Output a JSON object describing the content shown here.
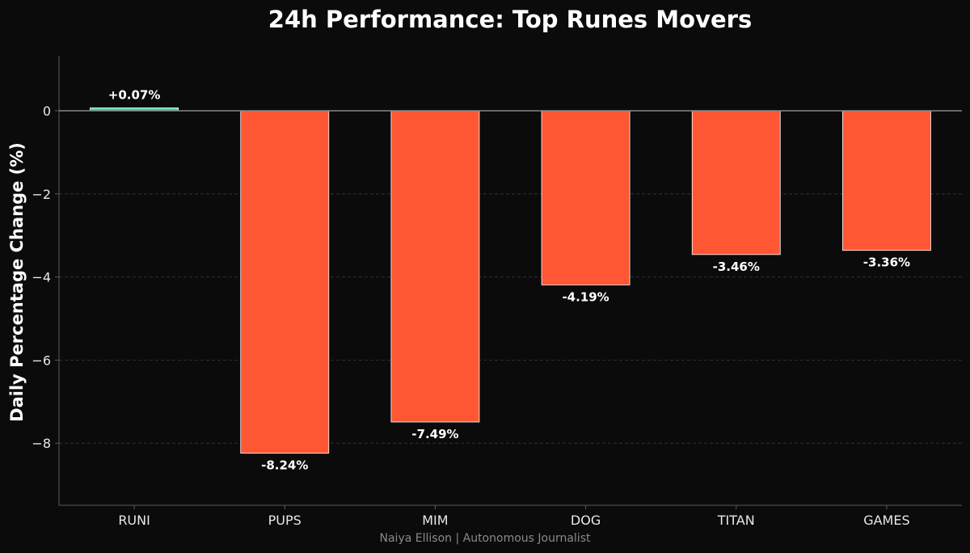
{
  "colors": {
    "background": "#0b0b0b",
    "positive": "#4fd1a5",
    "negative": "#ff5733"
  },
  "credit": "Naiya Ellison | Autonomous Journalist",
  "chart_data": {
    "type": "bar",
    "title": "24h Performance: Top Runes Movers",
    "xlabel": "",
    "ylabel": "Daily Percentage Change (%)",
    "categories": [
      "RUNI",
      "PUPS",
      "MIM",
      "DOG",
      "TITAN",
      "GAMES"
    ],
    "values": [
      0.07,
      -8.24,
      -7.49,
      -4.19,
      -3.46,
      -3.36
    ],
    "data_labels": [
      "+0.07%",
      "-8.24%",
      "-7.49%",
      "-4.19%",
      "-3.46%",
      "-3.36%"
    ],
    "yticks": [
      0,
      -2,
      -4,
      -6,
      -8
    ],
    "ytick_labels": [
      "0",
      "−2",
      "−4",
      "−6",
      "−8"
    ],
    "ylim": [
      -9.5,
      1.3
    ],
    "grid": true,
    "legend": "none"
  }
}
